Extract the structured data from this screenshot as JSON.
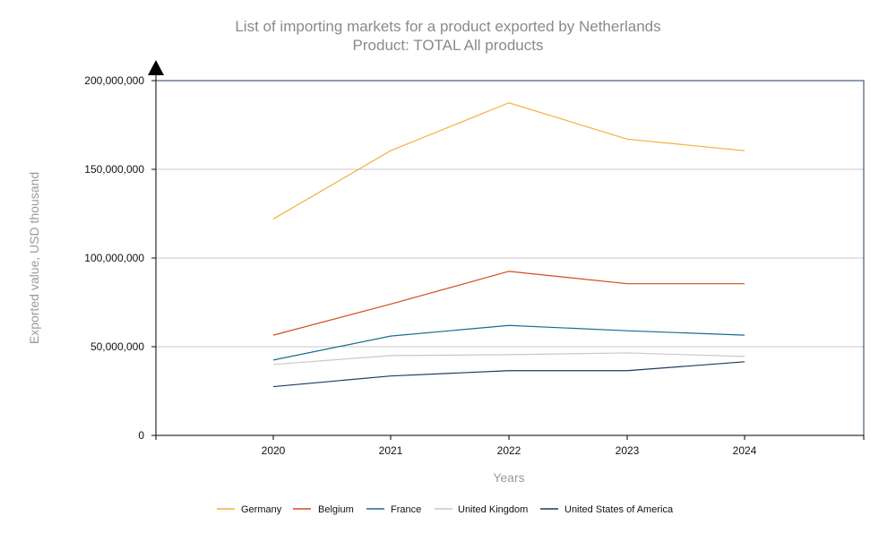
{
  "chart_data": {
    "type": "line",
    "title": "List of importing markets for a product exported by Netherlands",
    "subtitle": "Product: TOTAL All products",
    "xlabel": "Years",
    "ylabel": "Exported value, USD thousand",
    "categories": [
      "2020",
      "2021",
      "2022",
      "2023",
      "2024"
    ],
    "ylim": [
      0,
      200000000
    ],
    "y_ticks": [
      0,
      50000000,
      100000000,
      150000000,
      200000000
    ],
    "y_tick_labels": [
      "0",
      "50,000,000",
      "100,000,000",
      "150,000,000",
      "200,000,000"
    ],
    "grid": "horizontal",
    "legend_position": "bottom",
    "series": [
      {
        "name": "Germany",
        "color": "#f2b13f",
        "values": [
          122000000,
          160500000,
          187500000,
          167000000,
          160500000
        ]
      },
      {
        "name": "Belgium",
        "color": "#d34b21",
        "values": [
          56500000,
          74000000,
          92500000,
          85500000,
          85500000
        ]
      },
      {
        "name": "France",
        "color": "#1d6a8f",
        "values": [
          42500000,
          56000000,
          62000000,
          59000000,
          56500000
        ]
      },
      {
        "name": "United Kingdom",
        "color": "#c8c8c8",
        "values": [
          40000000,
          45000000,
          45500000,
          46500000,
          44500000
        ]
      },
      {
        "name": "United States of America",
        "color": "#1f3b60",
        "values": [
          27500000,
          33500000,
          36500000,
          36500000,
          41500000
        ]
      }
    ]
  }
}
